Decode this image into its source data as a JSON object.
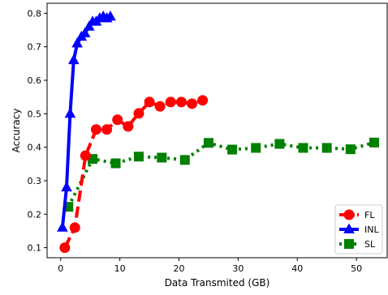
{
  "chart_data": {
    "type": "line",
    "title": "",
    "xlabel": "Data Transmited (GB)",
    "ylabel": "Accuracy",
    "xlim": [
      -2.3,
      55.2
    ],
    "ylim": [
      0.07,
      0.83
    ],
    "xticks": [
      0,
      10,
      20,
      30,
      40,
      50
    ],
    "yticks": [
      0.1,
      0.2,
      0.3,
      0.4,
      0.5,
      0.6,
      0.7,
      0.8
    ],
    "grid": false,
    "legend_position": "lower-right",
    "series": [
      {
        "name": "FL",
        "color": "#ff0000",
        "linestyle": "dashed",
        "marker": "circle",
        "x": [
          0.7,
          2.4,
          4.2,
          6.0,
          7.8,
          9.6,
          11.4,
          13.2,
          15.0,
          16.8,
          18.6,
          20.4,
          22.2,
          24.0
        ],
        "y": [
          0.1,
          0.16,
          0.375,
          0.453,
          0.453,
          0.482,
          0.462,
          0.501,
          0.535,
          0.522,
          0.535,
          0.535,
          0.53,
          0.54
        ]
      },
      {
        "name": "INL",
        "color": "#0000ff",
        "linestyle": "solid",
        "marker": "triangle",
        "x": [
          0.3,
          1.0,
          1.6,
          2.2,
          2.8,
          3.5,
          4.1,
          4.8,
          5.4,
          6.0,
          6.6,
          7.2,
          7.8,
          8.4
        ],
        "y": [
          0.16,
          0.28,
          0.5,
          0.66,
          0.71,
          0.73,
          0.74,
          0.76,
          0.775,
          0.775,
          0.785,
          0.79,
          0.785,
          0.79
        ]
      },
      {
        "name": "SL",
        "color": "#008000",
        "linestyle": "dotted",
        "marker": "square",
        "x": [
          1.3,
          5.4,
          9.3,
          13.2,
          17.1,
          21.0,
          25.0,
          29.0,
          33.0,
          37.0,
          41.0,
          45.0,
          49.0,
          53.0
        ],
        "y": [
          0.222,
          0.365,
          0.352,
          0.372,
          0.369,
          0.362,
          0.413,
          0.393,
          0.398,
          0.41,
          0.398,
          0.398,
          0.394,
          0.414
        ]
      }
    ]
  }
}
